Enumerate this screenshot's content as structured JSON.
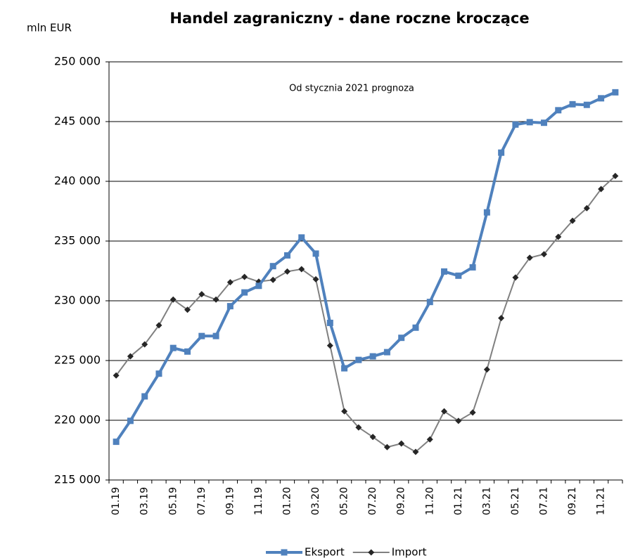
{
  "chart_data": {
    "type": "line",
    "title": "Handel zagraniczny - dane roczne kroczące",
    "y_label": "mln EUR",
    "annotation": "Od stycznia 2021 prognoza",
    "categories": [
      "01.19",
      null,
      "03.19",
      null,
      "05.19",
      null,
      "07.19",
      null,
      "09.19",
      null,
      "11.19",
      null,
      "01.20",
      null,
      "03.20",
      null,
      "05.20",
      null,
      "07.20",
      null,
      "09.20",
      null,
      "11.20",
      null,
      "01.21",
      null,
      "03.21",
      null,
      "05.21",
      null,
      "07.21",
      null,
      "09.21",
      null,
      "11.21",
      null
    ],
    "series": [
      {
        "name": "Eksport",
        "color": "#4f81bd",
        "marker": "square",
        "marker_color": "#4f81bd",
        "line_width": 4,
        "values": [
          218200,
          219950,
          222000,
          223900,
          226050,
          225750,
          227050,
          227050,
          229550,
          230700,
          231250,
          232900,
          233800,
          235300,
          233950,
          228150,
          224350,
          225050,
          225350,
          225700,
          226900,
          227750,
          229900,
          232450,
          232100,
          232800,
          237400,
          242400,
          244750,
          244950,
          244900,
          245950,
          246450,
          246400,
          246950,
          247450
        ]
      },
      {
        "name": "Import",
        "color": "#808080",
        "marker": "diamond",
        "marker_color": "#262626",
        "line_width": 2,
        "values": [
          223750,
          225350,
          226350,
          227950,
          230100,
          229250,
          230550,
          230100,
          231550,
          232000,
          231600,
          231750,
          232450,
          232650,
          231800,
          226250,
          220750,
          219400,
          218600,
          217750,
          218050,
          217350,
          218400,
          220750,
          219950,
          220650,
          224250,
          228550,
          231950,
          233600,
          233900,
          235350,
          236700,
          237750,
          239350,
          240450
        ]
      }
    ],
    "ylim": [
      215000,
      250000
    ],
    "yticks": [
      {
        "value": 215000,
        "label": "215 000"
      },
      {
        "value": 220000,
        "label": "220 000"
      },
      {
        "value": 225000,
        "label": "225 000"
      },
      {
        "value": 230000,
        "label": "230 000"
      },
      {
        "value": 235000,
        "label": "235 000"
      },
      {
        "value": 240000,
        "label": "240 000"
      },
      {
        "value": 245000,
        "label": "245 000"
      },
      {
        "value": 250000,
        "label": "250 000"
      }
    ],
    "grid": true,
    "legend": "bottom"
  }
}
